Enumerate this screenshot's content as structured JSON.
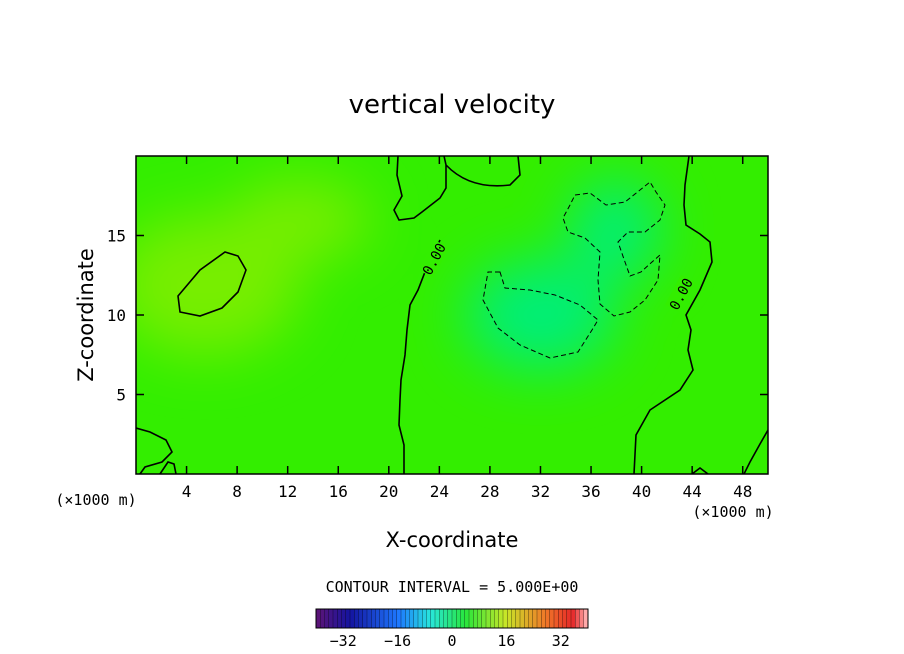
{
  "chart_data": {
    "type": "heatmap",
    "title": "vertical velocity",
    "xlabel": "X-coordinate",
    "ylabel": "Z-coordinate",
    "x_unit": "(×1000 m)",
    "z_unit": "(×1000 m)",
    "xlim": [
      0,
      50
    ],
    "ylim": [
      0,
      20
    ],
    "x_ticks": [
      4,
      8,
      12,
      16,
      20,
      24,
      28,
      32,
      36,
      40,
      44,
      48
    ],
    "y_ticks": [
      5,
      10,
      15
    ],
    "contour_interval_text": "CONTOUR INTERVAL = 5.000E+00",
    "contour_interval": 5.0,
    "contour_labels": [
      "0.00",
      "0.00"
    ],
    "colorbar": {
      "range": [
        -40,
        40
      ],
      "ticks": [
        -32,
        -16,
        0,
        16,
        32
      ],
      "colormap": "rainbow: purple-blue-cyan-green-yellow-red"
    },
    "field_colors": {
      "base": "#33ee00",
      "positive": "#77ee00",
      "negative": "#00ee77"
    }
  }
}
